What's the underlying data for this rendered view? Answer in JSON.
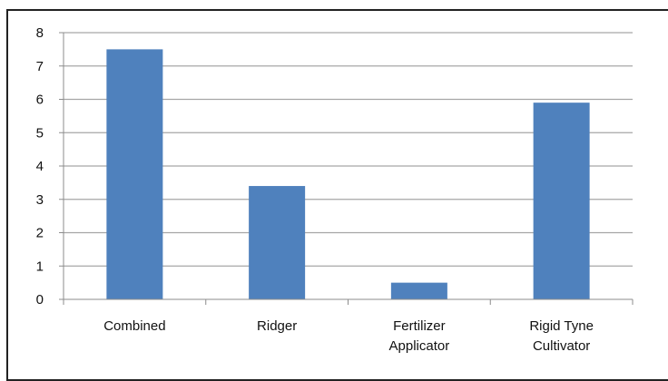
{
  "chart_data": {
    "type": "bar",
    "categories": [
      [
        "Combined"
      ],
      [
        "Ridger"
      ],
      [
        "Fertilizer",
        "Applicator"
      ],
      [
        "Rigid Tyne",
        "Cultivator"
      ]
    ],
    "values": [
      7.5,
      3.4,
      0.5,
      5.9
    ],
    "ylim": [
      0,
      8
    ],
    "yticks": [
      "0",
      "1",
      "2",
      "3",
      "4",
      "5",
      "6",
      "7",
      "8"
    ],
    "title": "",
    "xlabel": "",
    "ylabel": "",
    "grid": true,
    "legend": "none",
    "bar_color": "#4F81BD",
    "grid_color": "#a6a6a6"
  }
}
